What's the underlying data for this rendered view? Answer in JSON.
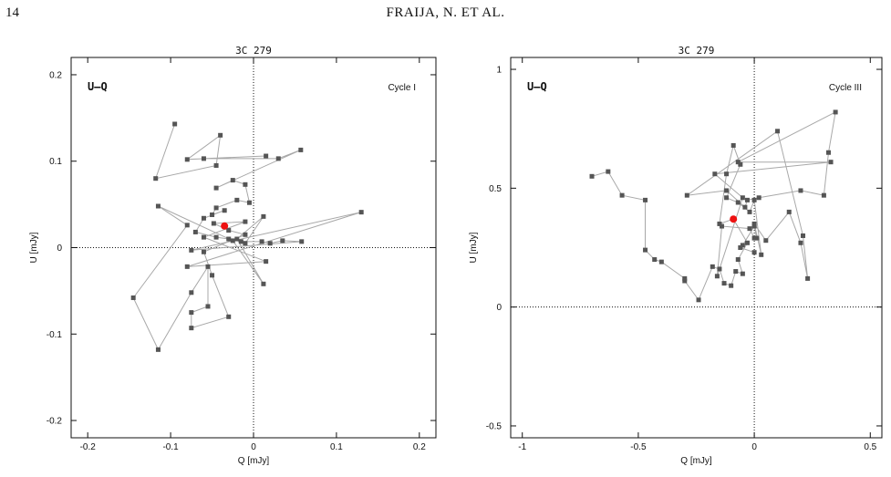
{
  "page": {
    "number": "14",
    "running_head": "FRAIJA, N. ET AL."
  },
  "chart_data": [
    {
      "type": "scatter",
      "title": "3C 279",
      "panel_label": "U–Q",
      "cycle": "Cycle I",
      "xlabel": "Q [mJy]",
      "ylabel": "U [mJy]",
      "xlim": [
        -0.22,
        0.22
      ],
      "ylim": [
        -0.22,
        0.22
      ],
      "xticks": [
        -0.2,
        -0.1,
        0,
        0.1,
        0.2
      ],
      "xtick_labels": [
        "-0.2",
        "-0.1",
        "0",
        "0.1",
        "0.2"
      ],
      "yticks": [
        -0.2,
        -0.1,
        0,
        0.1,
        0.2
      ],
      "ytick_labels": [
        "-0.2",
        "-0.1",
        "0",
        "0.1",
        "0.2"
      ],
      "reference_lines": {
        "x": 0,
        "y": 0,
        "style": "dotted"
      },
      "marker_color": "#555555",
      "line_color": "#a8a8a8",
      "highlight_color": "#ee1111",
      "path": [
        [
          -0.095,
          0.143
        ],
        [
          -0.118,
          0.08
        ],
        [
          -0.045,
          0.095
        ],
        [
          -0.04,
          0.13
        ],
        [
          -0.08,
          0.102
        ],
        [
          0.015,
          0.106
        ],
        [
          -0.06,
          0.103
        ],
        [
          0.03,
          0.103
        ],
        [
          0.057,
          0.113
        ],
        [
          -0.045,
          0.069
        ],
        [
          -0.025,
          0.078
        ],
        [
          -0.01,
          0.073
        ],
        [
          -0.005,
          0.052
        ],
        [
          -0.02,
          0.055
        ],
        [
          -0.045,
          0.046
        ],
        [
          -0.05,
          0.038
        ],
        [
          -0.035,
          0.043
        ],
        [
          -0.06,
          0.034
        ],
        [
          -0.07,
          0.018
        ],
        [
          -0.045,
          0.012
        ],
        [
          -0.03,
          0.01
        ],
        [
          -0.015,
          0.007
        ],
        [
          0.01,
          0.007
        ],
        [
          0.02,
          0.005
        ],
        [
          0.035,
          0.008
        ],
        [
          0.058,
          0.007
        ],
        [
          -0.075,
          -0.003
        ],
        [
          0.13,
          0.041
        ],
        [
          -0.08,
          -0.022
        ],
        [
          0.015,
          -0.016
        ],
        [
          -0.06,
          0.012
        ],
        [
          -0.01,
          0.03
        ],
        [
          -0.048,
          0.028
        ],
        [
          -0.03,
          0.02
        ],
        [
          -0.01,
          0.015
        ],
        [
          -0.06,
          -0.005
        ],
        [
          -0.05,
          -0.032
        ],
        [
          -0.03,
          -0.08
        ],
        [
          -0.075,
          -0.093
        ],
        [
          -0.075,
          -0.075
        ],
        [
          -0.055,
          -0.068
        ],
        [
          -0.055,
          -0.022
        ],
        [
          -0.075,
          -0.052
        ],
        [
          -0.115,
          -0.118
        ],
        [
          -0.145,
          -0.058
        ],
        [
          -0.08,
          0.026
        ],
        [
          -0.115,
          0.048
        ],
        [
          -0.025,
          0.008
        ],
        [
          0.012,
          -0.042
        ],
        [
          -0.02,
          0.01
        ],
        [
          0.012,
          0.036
        ],
        [
          -0.01,
          0.005
        ]
      ],
      "highlight_point": [
        -0.035,
        0.025
      ]
    },
    {
      "type": "scatter",
      "title": "3C 279",
      "panel_label": "U–Q",
      "cycle": "Cycle III",
      "xlabel": "Q [mJy]",
      "ylabel": "U [mJy]",
      "xlim": [
        -1.05,
        0.55
      ],
      "ylim": [
        -0.55,
        1.05
      ],
      "xticks": [
        -1,
        -0.5,
        0,
        0.5
      ],
      "xtick_labels": [
        "-1",
        "-0.5",
        "0",
        "0.5"
      ],
      "yticks": [
        -0.5,
        0,
        0.5,
        1
      ],
      "ytick_labels": [
        "-0.5",
        "0",
        "0.5",
        "1"
      ],
      "reference_lines": {
        "x": 0,
        "y": 0,
        "style": "dotted"
      },
      "marker_color": "#555555",
      "line_color": "#a8a8a8",
      "highlight_color": "#ee1111",
      "path": [
        [
          -0.7,
          0.55
        ],
        [
          -0.63,
          0.57
        ],
        [
          -0.57,
          0.47
        ],
        [
          -0.47,
          0.45
        ],
        [
          -0.47,
          0.24
        ],
        [
          -0.43,
          0.2
        ],
        [
          -0.4,
          0.19
        ],
        [
          -0.3,
          0.12
        ],
        [
          -0.3,
          0.11
        ],
        [
          -0.24,
          0.03
        ],
        [
          -0.18,
          0.17
        ],
        [
          -0.15,
          0.16
        ],
        [
          -0.13,
          0.1
        ],
        [
          -0.1,
          0.09
        ],
        [
          -0.08,
          0.15
        ],
        [
          -0.05,
          0.14
        ],
        [
          -0.07,
          0.2
        ],
        [
          -0.03,
          0.27
        ],
        [
          -0.09,
          0.37
        ],
        [
          -0.15,
          0.35
        ],
        [
          -0.12,
          0.56
        ],
        [
          -0.09,
          0.68
        ],
        [
          -0.06,
          0.6
        ],
        [
          -0.12,
          0.46
        ],
        [
          -0.07,
          0.44
        ],
        [
          -0.02,
          0.4
        ],
        [
          0.0,
          0.45
        ],
        [
          0.03,
          0.22
        ],
        [
          0.0,
          0.35
        ],
        [
          0.05,
          0.28
        ],
        [
          0.15,
          0.4
        ],
        [
          0.2,
          0.27
        ],
        [
          0.23,
          0.12
        ],
        [
          0.21,
          0.3
        ],
        [
          0.1,
          0.74
        ],
        [
          -0.29,
          0.47
        ],
        [
          -0.12,
          0.49
        ],
        [
          -0.04,
          0.42
        ],
        [
          -0.03,
          0.45
        ],
        [
          0.02,
          0.46
        ],
        [
          0.2,
          0.49
        ],
        [
          0.3,
          0.47
        ],
        [
          0.32,
          0.65
        ],
        [
          0.35,
          0.82
        ],
        [
          -0.07,
          0.61
        ],
        [
          0.33,
          0.61
        ],
        [
          -0.17,
          0.56
        ],
        [
          -0.05,
          0.46
        ],
        [
          -0.16,
          0.13
        ],
        [
          -0.14,
          0.34
        ],
        [
          -0.02,
          0.33
        ],
        [
          0.0,
          0.29
        ],
        [
          0.01,
          0.29
        ],
        [
          0.0,
          0.34
        ],
        [
          -0.05,
          0.26
        ],
        [
          -0.06,
          0.25
        ],
        [
          0.0,
          0.23
        ]
      ],
      "highlight_point": [
        -0.09,
        0.37
      ]
    }
  ]
}
